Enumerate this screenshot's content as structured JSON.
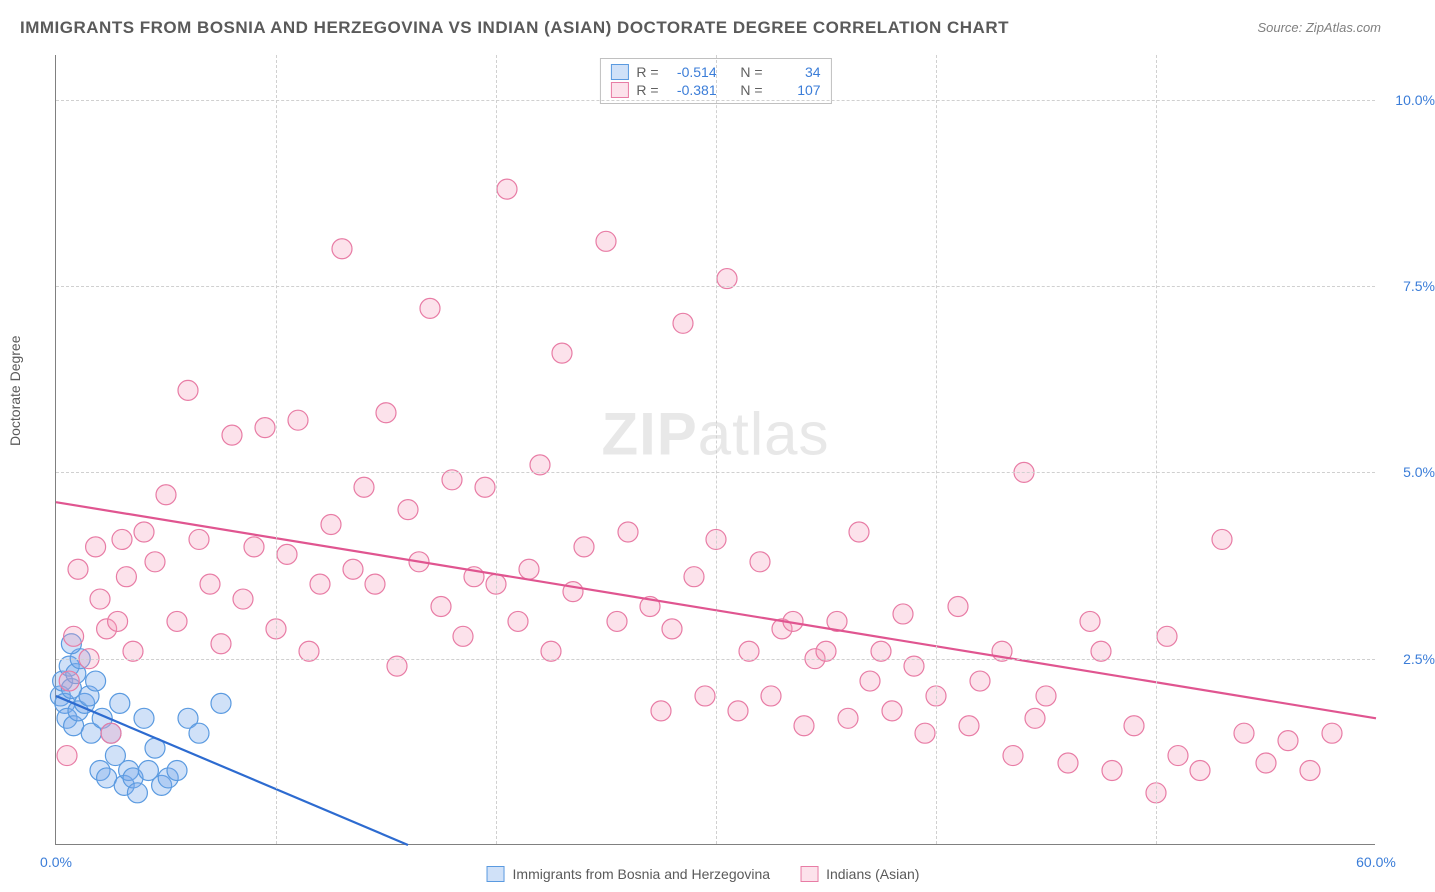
{
  "title": "IMMIGRANTS FROM BOSNIA AND HERZEGOVINA VS INDIAN (ASIAN) DOCTORATE DEGREE CORRELATION CHART",
  "source": "Source: ZipAtlas.com",
  "y_axis_label": "Doctorate Degree",
  "watermark": {
    "zip": "ZIP",
    "atlas": "atlas"
  },
  "chart": {
    "type": "scatter",
    "xlim": [
      0,
      60
    ],
    "ylim": [
      0,
      10.6
    ],
    "x_ticks": [
      {
        "v": 0,
        "label": "0.0%"
      },
      {
        "v": 60,
        "label": "60.0%"
      }
    ],
    "x_minor_ticks": [
      10,
      20,
      30,
      40,
      50
    ],
    "y_ticks": [
      {
        "v": 2.5,
        "label": "2.5%"
      },
      {
        "v": 5.0,
        "label": "5.0%"
      },
      {
        "v": 7.5,
        "label": "7.5%"
      },
      {
        "v": 10.0,
        "label": "10.0%"
      }
    ],
    "background_color": "#ffffff",
    "grid_color": "#d0d0d0",
    "marker_radius": 10,
    "marker_stroke_width": 1.2,
    "line_width": 2.2,
    "series": [
      {
        "key": "bosnia",
        "label": "Immigrants from Bosnia and Herzegovina",
        "fill": "rgba(120,170,235,0.35)",
        "stroke": "#5a9ae0",
        "line_color": "#2d6bd0",
        "R": "-0.514",
        "N": "34",
        "trend": {
          "x1": 0,
          "y1": 2.0,
          "x2": 16,
          "y2": 0.0
        },
        "points": [
          [
            0.2,
            2.0
          ],
          [
            0.3,
            2.2
          ],
          [
            0.4,
            1.9
          ],
          [
            0.5,
            1.7
          ],
          [
            0.6,
            2.4
          ],
          [
            0.7,
            2.1
          ],
          [
            0.8,
            1.6
          ],
          [
            0.9,
            2.3
          ],
          [
            1.0,
            1.8
          ],
          [
            1.1,
            2.5
          ],
          [
            1.3,
            1.9
          ],
          [
            1.5,
            2.0
          ],
          [
            1.6,
            1.5
          ],
          [
            1.8,
            2.2
          ],
          [
            2.0,
            1.0
          ],
          [
            2.1,
            1.7
          ],
          [
            2.3,
            0.9
          ],
          [
            2.5,
            1.5
          ],
          [
            2.7,
            1.2
          ],
          [
            2.9,
            1.9
          ],
          [
            3.1,
            0.8
          ],
          [
            3.3,
            1.0
          ],
          [
            3.5,
            0.9
          ],
          [
            3.7,
            0.7
          ],
          [
            4.0,
            1.7
          ],
          [
            4.2,
            1.0
          ],
          [
            4.5,
            1.3
          ],
          [
            4.8,
            0.8
          ],
          [
            5.1,
            0.9
          ],
          [
            5.5,
            1.0
          ],
          [
            6.0,
            1.7
          ],
          [
            6.5,
            1.5
          ],
          [
            7.5,
            1.9
          ],
          [
            0.7,
            2.7
          ]
        ]
      },
      {
        "key": "indian",
        "label": "Indians (Asian)",
        "fill": "rgba(245,160,190,0.30)",
        "stroke": "#e87ca5",
        "line_color": "#e05590",
        "R": "-0.381",
        "N": "107",
        "trend": {
          "x1": 0,
          "y1": 4.6,
          "x2": 60,
          "y2": 1.7
        },
        "points": [
          [
            0.5,
            1.2
          ],
          [
            0.6,
            2.2
          ],
          [
            0.8,
            2.8
          ],
          [
            1.0,
            3.7
          ],
          [
            1.5,
            2.5
          ],
          [
            1.8,
            4.0
          ],
          [
            2.0,
            3.3
          ],
          [
            2.3,
            2.9
          ],
          [
            2.5,
            1.5
          ],
          [
            2.8,
            3.0
          ],
          [
            3.0,
            4.1
          ],
          [
            3.2,
            3.6
          ],
          [
            3.5,
            2.6
          ],
          [
            4.0,
            4.2
          ],
          [
            4.5,
            3.8
          ],
          [
            5.0,
            4.7
          ],
          [
            5.5,
            3.0
          ],
          [
            6.0,
            6.1
          ],
          [
            6.5,
            4.1
          ],
          [
            7.0,
            3.5
          ],
          [
            7.5,
            2.7
          ],
          [
            8.0,
            5.5
          ],
          [
            8.5,
            3.3
          ],
          [
            9.0,
            4.0
          ],
          [
            9.5,
            5.6
          ],
          [
            10.0,
            2.9
          ],
          [
            10.5,
            3.9
          ],
          [
            11.0,
            5.7
          ],
          [
            11.5,
            2.6
          ],
          [
            12.0,
            3.5
          ],
          [
            12.5,
            4.3
          ],
          [
            13.0,
            8.0
          ],
          [
            13.5,
            3.7
          ],
          [
            14.0,
            4.8
          ],
          [
            14.5,
            3.5
          ],
          [
            15.0,
            5.8
          ],
          [
            15.5,
            2.4
          ],
          [
            16.0,
            4.5
          ],
          [
            16.5,
            3.8
          ],
          [
            17.0,
            7.2
          ],
          [
            17.5,
            3.2
          ],
          [
            18.0,
            4.9
          ],
          [
            18.5,
            2.8
          ],
          [
            19.0,
            3.6
          ],
          [
            19.5,
            4.8
          ],
          [
            20.0,
            3.5
          ],
          [
            20.5,
            8.8
          ],
          [
            21.0,
            3.0
          ],
          [
            21.5,
            3.7
          ],
          [
            22.0,
            5.1
          ],
          [
            22.5,
            2.6
          ],
          [
            23.0,
            6.6
          ],
          [
            23.5,
            3.4
          ],
          [
            24.0,
            4.0
          ],
          [
            25.0,
            8.1
          ],
          [
            25.5,
            3.0
          ],
          [
            26.0,
            4.2
          ],
          [
            27.0,
            3.2
          ],
          [
            27.5,
            1.8
          ],
          [
            28.0,
            2.9
          ],
          [
            28.5,
            7.0
          ],
          [
            29.0,
            3.6
          ],
          [
            29.5,
            2.0
          ],
          [
            30.0,
            4.1
          ],
          [
            30.5,
            7.6
          ],
          [
            31.0,
            1.8
          ],
          [
            31.5,
            2.6
          ],
          [
            32.0,
            3.8
          ],
          [
            32.5,
            2.0
          ],
          [
            33.0,
            2.9
          ],
          [
            33.5,
            3.0
          ],
          [
            34.0,
            1.6
          ],
          [
            34.5,
            2.5
          ],
          [
            35.0,
            2.6
          ],
          [
            35.5,
            3.0
          ],
          [
            36.0,
            1.7
          ],
          [
            36.5,
            4.2
          ],
          [
            37.0,
            2.2
          ],
          [
            37.5,
            2.6
          ],
          [
            38.0,
            1.8
          ],
          [
            38.5,
            3.1
          ],
          [
            39.0,
            2.4
          ],
          [
            39.5,
            1.5
          ],
          [
            40.0,
            2.0
          ],
          [
            41.0,
            3.2
          ],
          [
            41.5,
            1.6
          ],
          [
            42.0,
            2.2
          ],
          [
            43.0,
            2.6
          ],
          [
            43.5,
            1.2
          ],
          [
            44.0,
            5.0
          ],
          [
            44.5,
            1.7
          ],
          [
            45.0,
            2.0
          ],
          [
            46.0,
            1.1
          ],
          [
            47.0,
            3.0
          ],
          [
            47.5,
            2.6
          ],
          [
            48.0,
            1.0
          ],
          [
            49.0,
            1.6
          ],
          [
            50.0,
            0.7
          ],
          [
            50.5,
            2.8
          ],
          [
            51.0,
            1.2
          ],
          [
            52.0,
            1.0
          ],
          [
            53.0,
            4.1
          ],
          [
            54.0,
            1.5
          ],
          [
            55.0,
            1.1
          ],
          [
            56.0,
            1.4
          ],
          [
            57.0,
            1.0
          ],
          [
            58.0,
            1.5
          ]
        ]
      }
    ]
  },
  "stats_box_labels": {
    "R": "R =",
    "N": "N ="
  }
}
